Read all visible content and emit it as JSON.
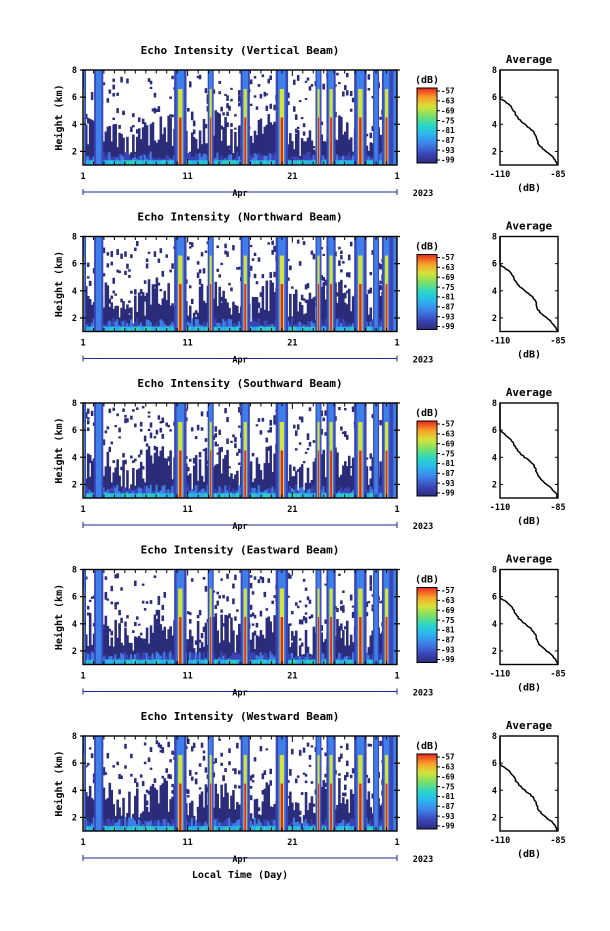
{
  "figure": {
    "x_axis_label": "Local Time (Day)",
    "month_label": "Apr",
    "year_label": "2023"
  },
  "chart_data": [
    {
      "type": "heatmap",
      "title": "Echo Intensity (Vertical Beam)",
      "ylabel": "Height (km)",
      "xlabel": "Local Time (Day)",
      "x_range": [
        1,
        31
      ],
      "x_ticks": [
        "1",
        "11",
        "21",
        "1"
      ],
      "y_range": [
        1,
        8
      ],
      "y_ticks": [
        "2",
        "4",
        "6",
        "8"
      ],
      "colorbar": {
        "label": "(dB)",
        "ticks": [
          "-57",
          "-63",
          "-69",
          "-75",
          "-81",
          "-87",
          "-93",
          "-99"
        ],
        "range": [
          -99,
          -57
        ]
      },
      "rain_days": [
        1,
        2.5,
        10.3,
        13.2,
        16.5,
        20,
        23.5,
        24.7,
        27.5,
        29,
        30,
        31
      ],
      "average_profile": {
        "title": "Average",
        "xlabel": "(dB)",
        "x_ticks": [
          "-110",
          "-85"
        ],
        "y_ticks": [
          "2",
          "4",
          "6",
          "8"
        ]
      }
    },
    {
      "type": "heatmap",
      "title": "Echo Intensity (Northward Beam)",
      "ylabel": "Height (km)",
      "xlabel": "Local Time (Day)",
      "x_range": [
        1,
        31
      ],
      "x_ticks": [
        "1",
        "11",
        "21",
        "1"
      ],
      "y_range": [
        1,
        8
      ],
      "y_ticks": [
        "2",
        "4",
        "6",
        "8"
      ],
      "colorbar": {
        "label": "(dB)",
        "ticks": [
          "-57",
          "-63",
          "-69",
          "-75",
          "-81",
          "-87",
          "-93",
          "-99"
        ],
        "range": [
          -99,
          -57
        ]
      },
      "rain_days": [
        1,
        2.5,
        10.3,
        13.2,
        16.5,
        20,
        23.5,
        24.7,
        27.5,
        29,
        30,
        31
      ],
      "average_profile": {
        "title": "Average",
        "xlabel": "(dB)",
        "x_ticks": [
          "-110",
          "-85"
        ],
        "y_ticks": [
          "2",
          "4",
          "6",
          "8"
        ]
      }
    },
    {
      "type": "heatmap",
      "title": "Echo Intensity (Southward Beam)",
      "ylabel": "Height (km)",
      "xlabel": "Local Time (Day)",
      "x_range": [
        1,
        31
      ],
      "x_ticks": [
        "1",
        "11",
        "21",
        "1"
      ],
      "y_range": [
        1,
        8
      ],
      "y_ticks": [
        "2",
        "4",
        "6",
        "8"
      ],
      "colorbar": {
        "label": "(dB)",
        "ticks": [
          "-57",
          "-63",
          "-69",
          "-75",
          "-81",
          "-87",
          "-93",
          "-99"
        ],
        "range": [
          -99,
          -57
        ]
      },
      "rain_days": [
        1,
        2.5,
        10.3,
        13.2,
        16.5,
        20,
        23.5,
        24.7,
        27.5,
        29,
        30,
        31
      ],
      "average_profile": {
        "title": "Average",
        "xlabel": "(dB)",
        "x_ticks": [
          "-110",
          "-85"
        ],
        "y_ticks": [
          "2",
          "4",
          "6",
          "8"
        ]
      }
    },
    {
      "type": "heatmap",
      "title": "Echo Intensity (Eastward Beam)",
      "ylabel": "Height (km)",
      "xlabel": "Local Time (Day)",
      "x_range": [
        1,
        31
      ],
      "x_ticks": [
        "1",
        "11",
        "21",
        "1"
      ],
      "y_range": [
        1,
        8
      ],
      "y_ticks": [
        "2",
        "4",
        "6",
        "8"
      ],
      "colorbar": {
        "label": "(dB)",
        "ticks": [
          "-57",
          "-63",
          "-69",
          "-75",
          "-81",
          "-87",
          "-93",
          "-99"
        ],
        "range": [
          -99,
          -57
        ]
      },
      "rain_days": [
        1,
        2.5,
        10.3,
        13.2,
        16.5,
        20,
        23.5,
        24.7,
        27.5,
        29,
        30,
        31
      ],
      "average_profile": {
        "title": "Average",
        "xlabel": "(dB)",
        "x_ticks": [
          "-110",
          "-85"
        ],
        "y_ticks": [
          "2",
          "4",
          "6",
          "8"
        ]
      }
    },
    {
      "type": "heatmap",
      "title": "Echo Intensity (Westward Beam)",
      "ylabel": "Height (km)",
      "xlabel": "Local Time (Day)",
      "x_range": [
        1,
        31
      ],
      "x_ticks": [
        "1",
        "11",
        "21",
        "1"
      ],
      "y_range": [
        1,
        8
      ],
      "y_ticks": [
        "2",
        "4",
        "6",
        "8"
      ],
      "colorbar": {
        "label": "(dB)",
        "ticks": [
          "-57",
          "-63",
          "-69",
          "-75",
          "-81",
          "-87",
          "-93",
          "-99"
        ],
        "range": [
          -99,
          -57
        ]
      },
      "rain_days": [
        1,
        2.5,
        10.3,
        13.2,
        16.5,
        20,
        23.5,
        24.7,
        27.5,
        29,
        30,
        31
      ],
      "average_profile": {
        "title": "Average",
        "xlabel": "(dB)",
        "x_ticks": [
          "-110",
          "-85"
        ],
        "y_ticks": [
          "2",
          "4",
          "6",
          "8"
        ]
      }
    }
  ]
}
